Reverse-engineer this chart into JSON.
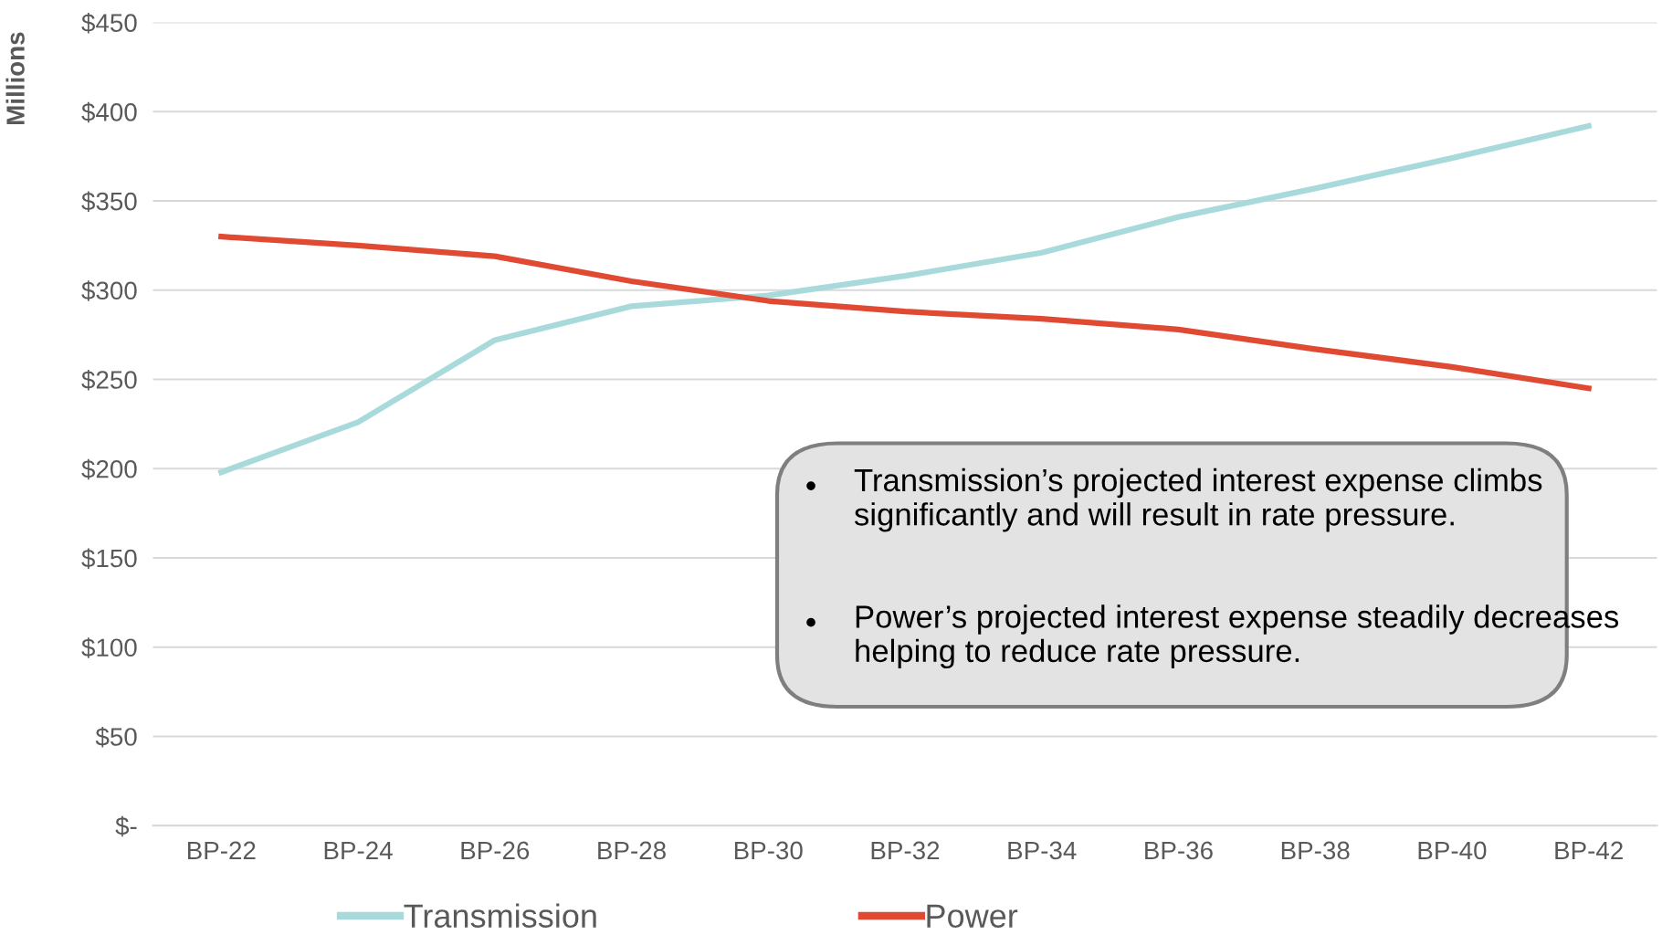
{
  "chart_data": {
    "type": "line",
    "ylabel": "Millions",
    "categories": [
      "BP-22",
      "BP-24",
      "BP-26",
      "BP-28",
      "BP-30",
      "BP-32",
      "BP-34",
      "BP-36",
      "BP-38",
      "BP-40",
      "BP-42"
    ],
    "series": [
      {
        "name": "Transmission",
        "color": "#a9dadb",
        "values": [
          198,
          226,
          272,
          291,
          297,
          308,
          321,
          341,
          357,
          374,
          392
        ]
      },
      {
        "name": "Power",
        "color": "#e04a33",
        "values": [
          330,
          325,
          319,
          305,
          294,
          288,
          284,
          278,
          267,
          257,
          245
        ]
      }
    ],
    "ylim": [
      0,
      450
    ],
    "yticks": [
      {
        "value": 0,
        "label": "$-"
      },
      {
        "value": 50,
        "label": "$50"
      },
      {
        "value": 100,
        "label": "$100"
      },
      {
        "value": 150,
        "label": "$150"
      },
      {
        "value": 200,
        "label": "$200"
      },
      {
        "value": 250,
        "label": "$250"
      },
      {
        "value": 300,
        "label": "$300"
      },
      {
        "value": 350,
        "label": "$350"
      },
      {
        "value": 400,
        "label": "$400"
      },
      {
        "value": 450,
        "label": "$450"
      }
    ],
    "grid": "y",
    "legend": "bottom",
    "marker": "none",
    "line_style": "solid",
    "annotations": [
      "Transmission’s projected interest expense climbs significantly and will result in rate pressure.",
      "Power’s projected interest expense steadily decreases helping to reduce rate pressure."
    ]
  }
}
